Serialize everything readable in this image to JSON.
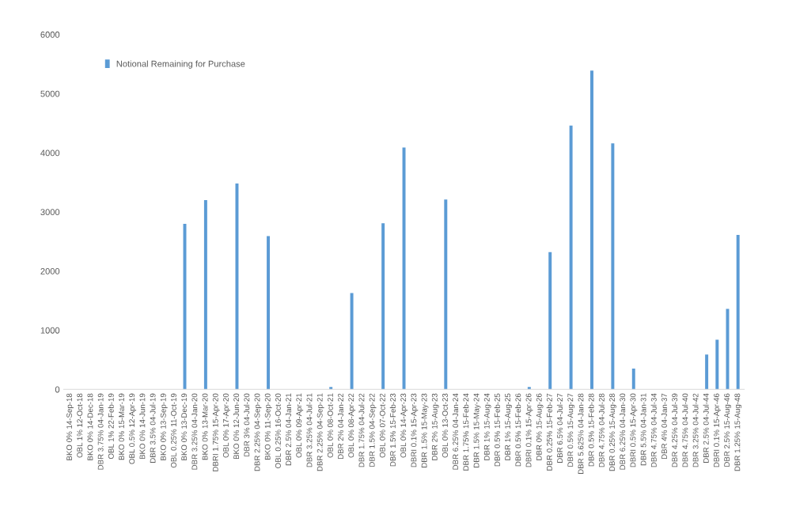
{
  "chart_data": {
    "type": "bar",
    "categories": [
      "BKO 0% 14-Sep-18",
      "OBL 1% 12-Oct-18",
      "BKO 0% 14-Dec-18",
      "DBR 3.75% 04-Jan-19",
      "OBL 1% 22-Feb-19",
      "BKO 0% 15-Mar-19",
      "OBL 0.5% 12-Apr-19",
      "BKO 0% 14-Jun-19",
      "DBR 3.5% 04-Jul-19",
      "BKO 0% 13-Sep-19",
      "OBL 0.25% 11-Oct-19",
      "BKO 0% 13-Dec-19",
      "DBR 3.25% 04-Jan-20",
      "BKO 0% 13-Mar-20",
      "DBRI 1.75% 15-Apr-20",
      "OBL 0% 17-Apr-20",
      "BKO 0% 12-Jun-20",
      "DBR 3% 04-Jul-20",
      "DBR 2.25% 04-Sep-20",
      "BKO 0% 11-Sep-20",
      "OBL 0.25% 16-Oct-20",
      "DBR 2.5% 04-Jan-21",
      "OBL 0% 09-Apr-21",
      "DBR 3.25% 04-Jul-21",
      "DBR 2.25% 04-Sep-21",
      "OBL 0% 08-Oct-21",
      "DBR 2% 04-Jan-22",
      "OBL 0% 08-Apr-22",
      "DBR 1.75% 04-Jul-22",
      "DBR 1.5% 04-Sep-22",
      "OBL 0% 07-Oct-22",
      "DBR 1.5% 15-Feb-23",
      "OBL 0% 14-Apr-23",
      "DBRI 0.1% 15-Apr-23",
      "DBR 1.5% 15-May-23",
      "DBR 2% 15-Aug-23",
      "OBL 0% 13-Oct-23",
      "DBR 6.25% 04-Jan-24",
      "DBR 1.75% 15-Feb-24",
      "DBR 1.5% 15-May-24",
      "DBR 1% 15-Aug-24",
      "DBR 0.5% 15-Feb-25",
      "DBR 1% 15-Aug-25",
      "DBR 0.5% 15-Feb-26",
      "DBRI 0.1% 15-Apr-26",
      "DBR 0% 15-Aug-26",
      "DBR 0.25% 15-Feb-27",
      "DBR 6.5% 04-Jul-27",
      "DBR 0.5% 15-Aug-27",
      "DBR 5.625% 04-Jan-28",
      "DBR 0.5% 15-Feb-28",
      "DBR 4.75% 04-Jul-28",
      "DBR 0.25% 15-Aug-28",
      "DBR 6.25% 04-Jan-30",
      "DBRI 0.5% 15-Apr-30",
      "DBR 5.5% 04-Jan-31",
      "DBR 4.75% 04-Jul-34",
      "DBR 4% 04-Jan-37",
      "DBR 4.25% 04-Jul-39",
      "DBR 4.75% 04-Jul-40",
      "DBR 3.25% 04-Jul-42",
      "DBR 2.5% 04-Jul-44",
      "DBRI 0.1% 15-Apr-46",
      "DBR 2.5% 15-Aug-46",
      "DBR 1.25% 15-Aug-48"
    ],
    "series": [
      {
        "name": "Notional Remaining for Purchase",
        "color": "#5b9bd5",
        "values": [
          0,
          0,
          0,
          0,
          0,
          0,
          0,
          0,
          0,
          0,
          0,
          2800,
          0,
          3200,
          0,
          0,
          3480,
          0,
          0,
          2590,
          0,
          0,
          0,
          0,
          0,
          40,
          0,
          1630,
          0,
          0,
          2810,
          0,
          4090,
          0,
          0,
          0,
          3210,
          0,
          0,
          0,
          0,
          0,
          0,
          0,
          40,
          0,
          2320,
          0,
          4460,
          0,
          5390,
          0,
          4160,
          0,
          350,
          0,
          0,
          0,
          0,
          0,
          0,
          590,
          840,
          1360,
          2610
        ]
      }
    ],
    "ylim": [
      0,
      6000
    ],
    "yticks": [
      0,
      1000,
      2000,
      3000,
      4000,
      5000,
      6000
    ],
    "grid": false,
    "legend": "top left"
  }
}
